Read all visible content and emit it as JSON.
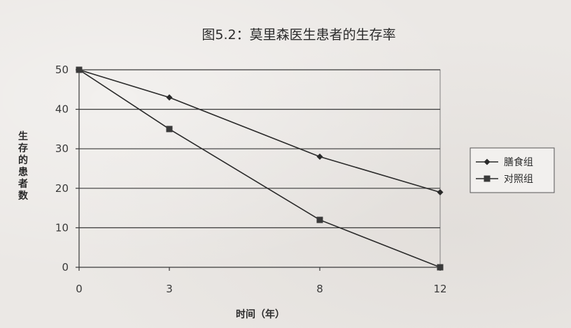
{
  "chart_data": {
    "type": "line",
    "title": "图5.2：莫里森医生患者的生存率",
    "xlabel": "时间（年）",
    "ylabel": "生存的患者数",
    "x": [
      0,
      3,
      8,
      12
    ],
    "x_tick_labels": [
      "0",
      "3",
      "8",
      "12"
    ],
    "y_tick_labels": [
      "0",
      "10",
      "20",
      "30",
      "40",
      "50"
    ],
    "ylim": [
      0,
      50
    ],
    "grid": true,
    "legend_position": "right",
    "series": [
      {
        "name": "膳食组",
        "marker": "diamond",
        "values": [
          50,
          43,
          28,
          19
        ]
      },
      {
        "name": "对照组",
        "marker": "square",
        "values": [
          50,
          35,
          12,
          0
        ]
      }
    ]
  }
}
